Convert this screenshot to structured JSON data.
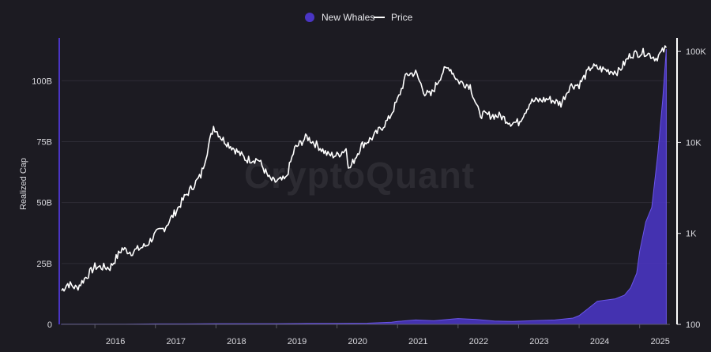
{
  "chart_data": {
    "type": "area",
    "legend": {
      "position": "top-center",
      "items": [
        {
          "label": "New Whales",
          "color": "#4a35c4",
          "marker": "circle"
        },
        {
          "label": "Price",
          "color": "#ffffff",
          "marker": "line"
        }
      ]
    },
    "watermark": "CryptoQuant",
    "x_axis": {
      "ticks": [
        "2016",
        "2017",
        "2018",
        "2019",
        "2020",
        "2021",
        "2022",
        "2023",
        "2024",
        "2025"
      ],
      "range": [
        2015.45,
        2025.5
      ]
    },
    "y_left": {
      "label": "Realized Cap",
      "ticks": [
        "0",
        "25B",
        "50B",
        "75B",
        "100B"
      ],
      "range": [
        0,
        115
      ]
    },
    "y_right": {
      "scale": "log",
      "ticks": [
        "100",
        "1K",
        "10K",
        "100K"
      ],
      "range": [
        100,
        120000
      ]
    },
    "grid": true,
    "series": [
      {
        "name": "New Whales",
        "kind": "area",
        "axis": "left",
        "color": "#4a35c4",
        "x": [
          2015.45,
          2016.0,
          2016.5,
          2017.0,
          2017.5,
          2018.0,
          2018.5,
          2019.0,
          2019.5,
          2020.0,
          2020.5,
          2020.9,
          2021.0,
          2021.3,
          2021.6,
          2021.9,
          2022.0,
          2022.3,
          2022.6,
          2022.9,
          2023.0,
          2023.3,
          2023.6,
          2023.9,
          2024.0,
          2024.15,
          2024.3,
          2024.6,
          2024.75,
          2024.85,
          2024.95,
          2025.0,
          2025.1,
          2025.2,
          2025.3,
          2025.38,
          2025.44
        ],
        "values": [
          0.1,
          0.1,
          0.1,
          0.2,
          0.2,
          0.3,
          0.3,
          0.3,
          0.4,
          0.4,
          0.5,
          0.9,
          1.2,
          1.8,
          1.5,
          2.2,
          2.4,
          2.0,
          1.4,
          1.2,
          1.3,
          1.6,
          1.8,
          2.6,
          3.6,
          6.5,
          9.5,
          10.5,
          12.0,
          15.0,
          21.0,
          30.0,
          42.0,
          48.0,
          70.0,
          92.0,
          113.0
        ]
      },
      {
        "name": "Price",
        "kind": "line",
        "axis": "right",
        "color": "#ffffff",
        "x": [
          2015.45,
          2015.55,
          2015.7,
          2015.85,
          2016.0,
          2016.25,
          2016.45,
          2016.6,
          2016.85,
          2017.0,
          2017.15,
          2017.35,
          2017.5,
          2017.75,
          2017.96,
          2018.1,
          2018.3,
          2018.5,
          2018.7,
          2018.88,
          2018.96,
          2019.15,
          2019.3,
          2019.5,
          2019.7,
          2019.85,
          2020.0,
          2020.15,
          2020.2,
          2020.4,
          2020.6,
          2020.85,
          2021.0,
          2021.15,
          2021.3,
          2021.45,
          2021.55,
          2021.75,
          2021.86,
          2022.0,
          2022.2,
          2022.35,
          2022.45,
          2022.7,
          2022.87,
          2023.0,
          2023.2,
          2023.5,
          2023.7,
          2023.85,
          2024.0,
          2024.2,
          2024.5,
          2024.65,
          2024.85,
          2024.95,
          2025.1,
          2025.27,
          2025.44
        ],
        "values": [
          235,
          280,
          250,
          330,
          430,
          420,
          680,
          620,
          740,
          980,
          1150,
          1800,
          2600,
          4300,
          15000,
          11000,
          8500,
          6500,
          6500,
          4000,
          3700,
          3900,
          8500,
          11500,
          9000,
          7300,
          7200,
          8500,
          5000,
          9200,
          11500,
          17800,
          29000,
          56000,
          58000,
          35000,
          33000,
          60000,
          67000,
          47000,
          42000,
          20500,
          20000,
          19500,
          16500,
          16600,
          28000,
          30000,
          26500,
          42000,
          43000,
          68000,
          61000,
          60000,
          92000,
          95000,
          98000,
          84000,
          110000
        ]
      }
    ]
  }
}
